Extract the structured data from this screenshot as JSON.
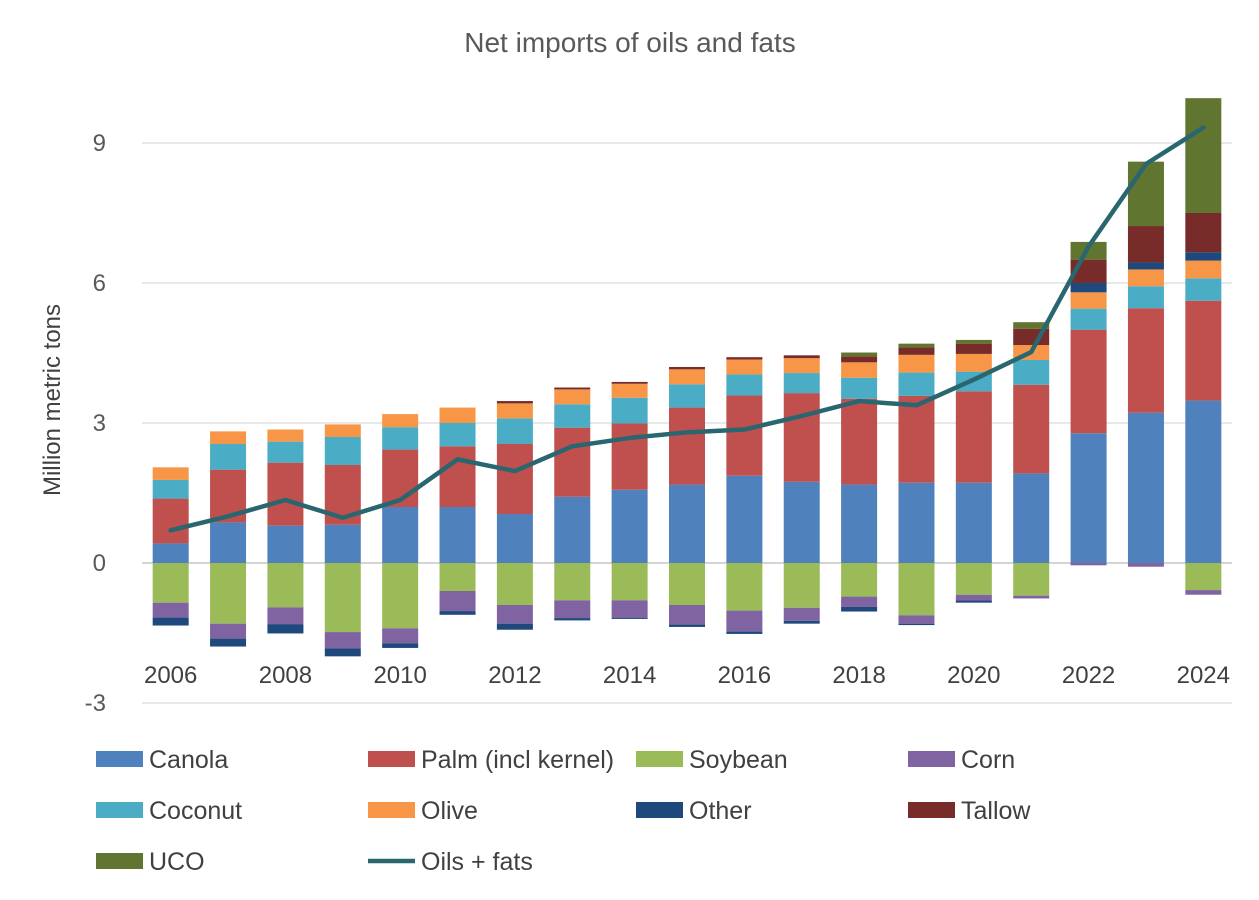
{
  "chart_data": {
    "type": "bar",
    "title": "Net imports of oils and fats",
    "ylabel": "Million metric tons",
    "ylim": [
      -3,
      10.5
    ],
    "yticks": [
      -3,
      0,
      3,
      6,
      9
    ],
    "x": [
      2006,
      2007,
      2008,
      2009,
      2010,
      2011,
      2012,
      2013,
      2014,
      2015,
      2016,
      2017,
      2018,
      2019,
      2020,
      2021,
      2022,
      2023,
      2024
    ],
    "xtick_labels": [
      "2006",
      "2008",
      "2010",
      "2012",
      "2014",
      "2016",
      "2018",
      "2020",
      "2022",
      "2024"
    ],
    "grid": "horizontal",
    "legend_position": "bottom",
    "series": [
      {
        "name": "Canola",
        "color": "#4f81bd",
        "values": [
          0.42,
          0.87,
          0.8,
          0.82,
          1.2,
          1.2,
          1.05,
          1.42,
          1.57,
          1.68,
          1.87,
          1.74,
          1.68,
          1.72,
          1.72,
          1.92,
          2.78,
          3.22,
          3.48
        ]
      },
      {
        "name": "Palm (incl kernel)",
        "color": "#c0504d",
        "values": [
          0.96,
          1.13,
          1.35,
          1.28,
          1.23,
          1.3,
          1.5,
          1.48,
          1.42,
          1.65,
          1.72,
          1.9,
          1.84,
          1.86,
          1.96,
          1.9,
          2.22,
          2.24,
          2.14
        ]
      },
      {
        "name": "Soybean",
        "color": "#9bbb59",
        "values": [
          -0.85,
          -1.3,
          -0.95,
          -1.48,
          -1.4,
          -0.6,
          -0.9,
          -0.8,
          -0.8,
          -0.9,
          -1.02,
          -0.96,
          -0.72,
          -1.12,
          -0.68,
          -0.7,
          0.0,
          0.0,
          -0.58
        ]
      },
      {
        "name": "Corn",
        "color": "#8064a2",
        "values": [
          -0.32,
          -0.32,
          -0.36,
          -0.35,
          -0.32,
          -0.43,
          -0.4,
          -0.38,
          -0.38,
          -0.42,
          -0.45,
          -0.28,
          -0.22,
          -0.18,
          -0.12,
          -0.06,
          -0.05,
          -0.08,
          -0.1
        ]
      },
      {
        "name": "Coconut",
        "color": "#4bacc6",
        "values": [
          0.4,
          0.55,
          0.45,
          0.6,
          0.48,
          0.5,
          0.55,
          0.5,
          0.55,
          0.5,
          0.45,
          0.43,
          0.45,
          0.5,
          0.42,
          0.53,
          0.45,
          0.47,
          0.48
        ]
      },
      {
        "name": "Olive",
        "color": "#f79646",
        "values": [
          0.27,
          0.27,
          0.26,
          0.27,
          0.28,
          0.33,
          0.32,
          0.32,
          0.3,
          0.32,
          0.32,
          0.32,
          0.33,
          0.38,
          0.38,
          0.32,
          0.35,
          0.36,
          0.38
        ]
      },
      {
        "name": "Other",
        "color": "#1f497d",
        "values": [
          -0.17,
          -0.17,
          -0.2,
          -0.17,
          -0.1,
          -0.08,
          -0.13,
          -0.05,
          -0.02,
          -0.05,
          -0.05,
          -0.06,
          -0.1,
          -0.03,
          -0.05,
          0.0,
          0.2,
          0.15,
          0.18
        ]
      },
      {
        "name": "Tallow",
        "color": "#772c2a",
        "values": [
          0.0,
          0.0,
          0.0,
          0.0,
          0.0,
          0.0,
          0.05,
          0.04,
          0.04,
          0.05,
          0.05,
          0.06,
          0.13,
          0.16,
          0.22,
          0.35,
          0.5,
          0.78,
          0.84
        ]
      },
      {
        "name": "UCO",
        "color": "#5f7530",
        "values": [
          0.0,
          0.0,
          0.0,
          0.0,
          0.0,
          0.0,
          0.0,
          0.0,
          0.0,
          0.0,
          0.0,
          0.0,
          0.08,
          0.08,
          0.08,
          0.14,
          0.38,
          1.38,
          2.46
        ]
      }
    ],
    "line": {
      "name": "Oils + fats",
      "color": "#29666f",
      "values": [
        0.7,
        1.0,
        1.35,
        0.97,
        1.35,
        2.22,
        1.97,
        2.5,
        2.68,
        2.8,
        2.86,
        3.15,
        3.47,
        3.38,
        3.93,
        4.52,
        6.78,
        8.55,
        9.33
      ]
    }
  }
}
